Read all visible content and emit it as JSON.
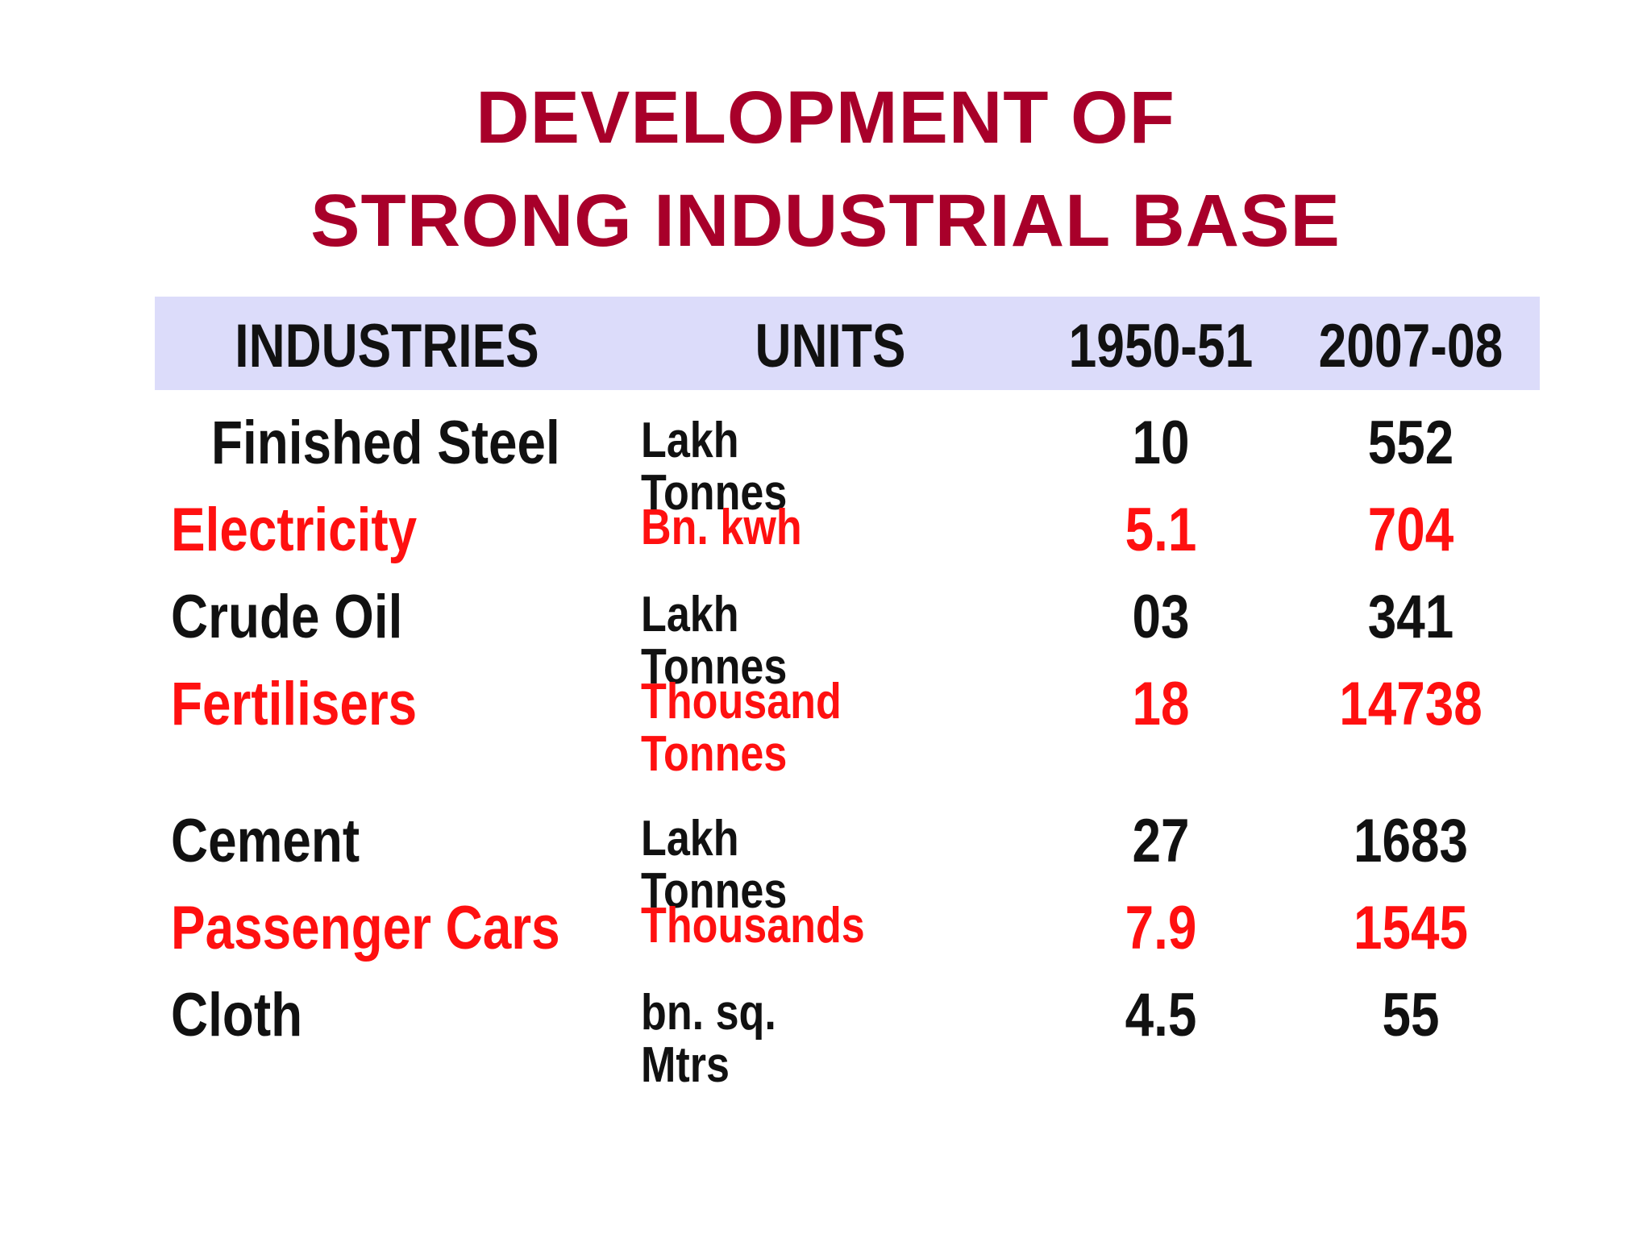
{
  "title": {
    "line1": "DEVELOPMENT OF",
    "line2": "STRONG INDUSTRIAL BASE"
  },
  "table": {
    "headers": [
      "INDUSTRIES",
      "UNITS",
      "1950-51",
      "2007-08"
    ],
    "rows": [
      {
        "industry": "Finished Steel",
        "unit": "Lakh Tonnes",
        "y1950_51": "10",
        "y2007_08": "552",
        "color": "black"
      },
      {
        "industry": "Electricity",
        "unit": "Bn. kwh",
        "y1950_51": "5.1",
        "y2007_08": "704",
        "color": "red"
      },
      {
        "industry": "Crude Oil",
        "unit": "Lakh Tonnes",
        "y1950_51": "03",
        "y2007_08": "341",
        "color": "black"
      },
      {
        "industry": "Fertilisers",
        "unit": "Thousand Tonnes",
        "y1950_51": "18",
        "y2007_08": "14738",
        "color": "red"
      },
      {
        "industry": "Cement",
        "unit": "Lakh Tonnes",
        "y1950_51": "27",
        "y2007_08": "1683",
        "color": "black"
      },
      {
        "industry": "Passenger Cars",
        "unit": "Thousands",
        "y1950_51": "7.9",
        "y2007_08": "1545",
        "color": "red"
      },
      {
        "industry": "Cloth",
        "unit": "bn. sq. Mtrs",
        "y1950_51": "4.5",
        "y2007_08": "55",
        "color": "black"
      }
    ]
  },
  "colors": {
    "title": "#a8002a",
    "header_band": "#dcdcfa",
    "text_dark": "#111111",
    "text_red": "#ff1010"
  }
}
